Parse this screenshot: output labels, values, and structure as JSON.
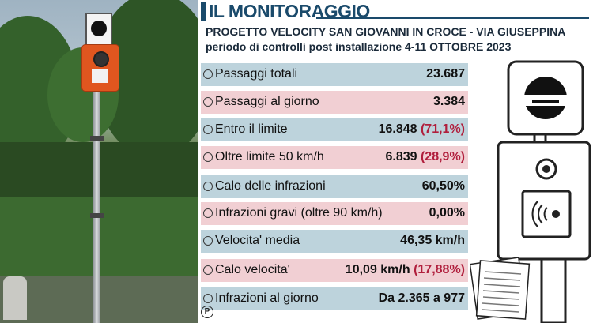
{
  "header": {
    "title": "IL MONITORAGGIO",
    "subtitle_line1": "PROGETTO VELOCITY SAN GIOVANNI IN CROCE - VIA GIUSEPPINA",
    "subtitle_line2": "periodo di controlli post installazione 4-11 OTTOBRE 2023"
  },
  "rows": [
    {
      "label": "Passaggi totali",
      "value": "23.687",
      "pct": "",
      "color": "blue"
    },
    {
      "label": "Passaggi al giorno",
      "value": "3.384",
      "pct": "",
      "color": "pink"
    },
    {
      "label": "Entro il limite",
      "value": "16.848 ",
      "pct": "(71,1%)",
      "color": "blue"
    },
    {
      "label": "Oltre limite 50 km/h",
      "value": "6.839 ",
      "pct": "(28,9%)",
      "color": "pink"
    },
    {
      "label": "Calo delle infrazioni",
      "value": "60,50%",
      "pct": "",
      "color": "blue"
    },
    {
      "label": "Infrazioni gravi (oltre 90 km/h)",
      "value": "0,00%",
      "pct": "",
      "color": "pink"
    },
    {
      "label": "Velocita' media",
      "value": "46,35 km/h",
      "pct": "",
      "color": "blue"
    },
    {
      "label": "Calo velocita'",
      "value": "10,09 km/h ",
      "pct": "(17,88%)",
      "color": "pink"
    },
    {
      "label": "Infrazioni al giorno",
      "value": "Da 2.365 a 977",
      "pct": "",
      "color": "blue"
    }
  ],
  "logo": "P",
  "colors": {
    "title": "#1a4a6b",
    "row_blue": "#bdd3dc",
    "row_pink": "#f1cfd3",
    "percent": "#b01e3c",
    "device_orange": "#e0561f"
  },
  "icons": [
    "speed-camera-photo",
    "speed-sign-icon",
    "speed-device-illustration",
    "documents-icon"
  ]
}
